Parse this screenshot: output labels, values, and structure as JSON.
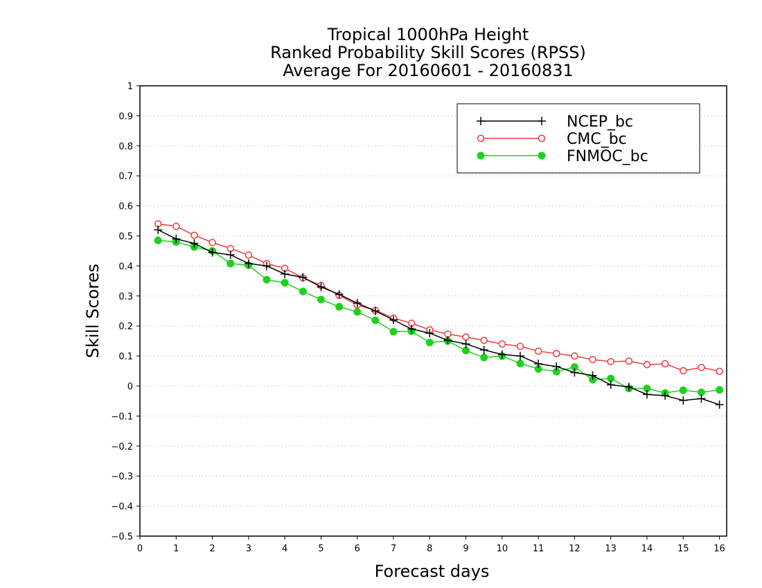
{
  "chart_data": {
    "type": "line",
    "title": [
      "Tropical 1000hPa Height",
      "Ranked Probability Skill Scores (RPSS)",
      "Average For 20160601 - 20160831"
    ],
    "xlabel": "Forecast days",
    "ylabel": "Skill Scores",
    "xlim": [
      0,
      16.2
    ],
    "ylim": [
      -0.5,
      1
    ],
    "xticks": [
      "0",
      "1",
      "2",
      "3",
      "4",
      "5",
      "6",
      "7",
      "8",
      "9",
      "10",
      "11",
      "12",
      "13",
      "14",
      "15",
      "16"
    ],
    "yticks": [
      "1",
      "0.9",
      "0.8",
      "0.7",
      "0.6",
      "0.5",
      "0.4",
      "0.3",
      "0.2",
      "0.1",
      "0",
      "−0.1",
      "−0.2",
      "−0.3",
      "−0.4",
      "−0.5"
    ],
    "grid": true,
    "legend_position": "top-right",
    "x": [
      0.5,
      1,
      1.5,
      2,
      2.5,
      3,
      3.5,
      4,
      4.5,
      5,
      5.5,
      6,
      6.5,
      7,
      7.5,
      8,
      8.5,
      9,
      9.5,
      10,
      10.5,
      11,
      11.5,
      12,
      12.5,
      13,
      13.5,
      14,
      14.5,
      15,
      15.5,
      16
    ],
    "series": [
      {
        "name": "NCEP_bc",
        "color": "#000000",
        "marker": "plus",
        "values": [
          0.52,
          0.49,
          0.475,
          0.445,
          0.437,
          0.408,
          0.4,
          0.373,
          0.362,
          0.33,
          0.305,
          0.276,
          0.25,
          0.22,
          0.19,
          0.176,
          0.152,
          0.14,
          0.12,
          0.105,
          0.1,
          0.074,
          0.065,
          0.045,
          0.035,
          0.004,
          -0.003,
          -0.028,
          -0.032,
          -0.048,
          -0.042,
          -0.062
        ]
      },
      {
        "name": "CMC_bc",
        "color": "#ef3a3a",
        "marker": "open-circle",
        "values": [
          0.54,
          0.532,
          0.502,
          0.478,
          0.458,
          0.436,
          0.408,
          0.392,
          0.36,
          0.335,
          0.302,
          0.27,
          0.252,
          0.226,
          0.209,
          0.187,
          0.173,
          0.163,
          0.152,
          0.14,
          0.132,
          0.116,
          0.108,
          0.1,
          0.088,
          0.081,
          0.083,
          0.071,
          0.074,
          0.051,
          0.062,
          0.049
        ]
      },
      {
        "name": "FNMOC_bc",
        "color": "#1fd11f",
        "marker": "filled-circle",
        "values": [
          0.485,
          0.48,
          0.463,
          0.45,
          0.408,
          0.402,
          0.354,
          0.344,
          0.315,
          0.288,
          0.264,
          0.247,
          0.219,
          0.181,
          0.182,
          0.145,
          0.15,
          0.118,
          0.095,
          0.1,
          0.075,
          0.057,
          0.048,
          0.063,
          0.021,
          0.025,
          -0.008,
          -0.008,
          -0.023,
          -0.014,
          -0.021,
          -0.013
        ]
      }
    ]
  }
}
